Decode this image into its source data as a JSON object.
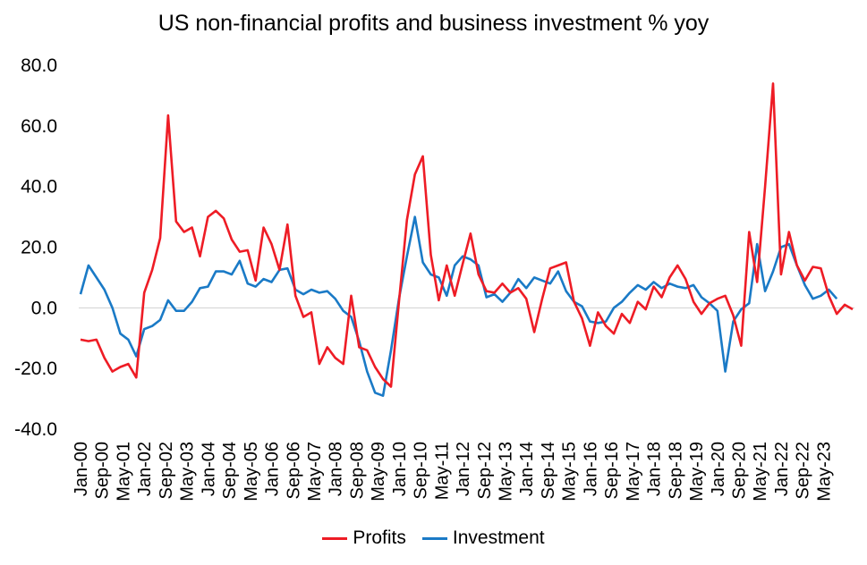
{
  "chart_data": {
    "type": "line",
    "title": "US non-financial profits and business investment % yoy",
    "xlabel": "",
    "ylabel": "",
    "ylim": [
      -40,
      80
    ],
    "yticks": [
      "80.0",
      "60.0",
      "40.0",
      "20.0",
      "0.0",
      "-20.0",
      "-40.0"
    ],
    "x_tick_labels": [
      "Jan-00",
      "Sep-00",
      "May-01",
      "Jan-02",
      "Sep-02",
      "May-03",
      "Jan-04",
      "Sep-04",
      "May-05",
      "Jan-06",
      "Sep-06",
      "May-07",
      "Jan-08",
      "Sep-08",
      "May-09",
      "Jan-10",
      "Sep-10",
      "May-11",
      "Jan-12",
      "Sep-12",
      "May-13",
      "Jan-14",
      "Sep-14",
      "May-15",
      "Jan-16",
      "Sep-16",
      "May-17",
      "Jan-18",
      "Sep-18",
      "May-19",
      "Jan-20",
      "Sep-20",
      "May-21",
      "Jan-22",
      "Sep-22",
      "May-23"
    ],
    "x_tick_start_quarter": 0,
    "x_tick_step_quarters": 2.6667,
    "series": [
      {
        "name": "Profits",
        "color": "#ee1c25",
        "values": [
          -10.5,
          -11,
          -10.5,
          -16.5,
          -21,
          -19.5,
          -18.5,
          -23,
          5,
          12.5,
          23,
          63.5,
          28.5,
          25,
          26.5,
          17,
          30,
          32,
          29.5,
          22.5,
          18.5,
          19,
          9,
          26.5,
          21,
          12.5,
          27.5,
          4,
          -3,
          -1.5,
          -18.5,
          -13,
          -16.5,
          -18.5,
          4,
          -13,
          -14,
          -19.5,
          -23.5,
          -26,
          2,
          29,
          44,
          50,
          17.5,
          2.5,
          14,
          4,
          14.5,
          24.5,
          11,
          5.5,
          5,
          8,
          5,
          6.5,
          3,
          -8,
          3,
          13,
          14,
          15,
          2,
          -3.5,
          -12.5,
          -1.5,
          -6,
          -8.5,
          -2,
          -5,
          2,
          -0.5,
          7,
          3.5,
          10,
          14,
          9.5,
          2,
          -2,
          1.5,
          3,
          4,
          -2.5,
          -12.5,
          25,
          8.5,
          40,
          74,
          11,
          25,
          14,
          9,
          13.5,
          13,
          4,
          -2,
          1,
          -0.5
        ]
      },
      {
        "name": "Investment",
        "color": "#1a7ac6",
        "values": [
          4.5,
          14,
          10,
          6,
          0,
          -8.5,
          -10.5,
          -16,
          -7,
          -6,
          -4,
          2.5,
          -1,
          -1,
          2,
          6.5,
          7,
          12,
          12,
          11,
          15.5,
          8,
          7,
          9.5,
          8.5,
          12.5,
          13,
          6,
          4.5,
          6,
          5,
          5.5,
          3,
          -1,
          -3,
          -11,
          -21,
          -28,
          -29,
          -14,
          3,
          17,
          30,
          15,
          11,
          10,
          4,
          14,
          17,
          16,
          14,
          3.5,
          4.5,
          2,
          5,
          9.5,
          6.5,
          10,
          9,
          8,
          12,
          5.5,
          2,
          0.5,
          -4.5,
          -5,
          -4.5,
          0,
          2,
          5,
          7.5,
          6,
          8.5,
          6.5,
          8,
          7,
          6.5,
          7.5,
          3.5,
          1.5,
          -1,
          -21,
          -4.5,
          -0.5,
          1.5,
          21,
          5.5,
          12,
          20,
          21,
          14,
          7.5,
          3,
          4,
          6,
          3
        ]
      }
    ]
  },
  "legend": {
    "profits_label": "Profits",
    "investment_label": "Investment"
  }
}
